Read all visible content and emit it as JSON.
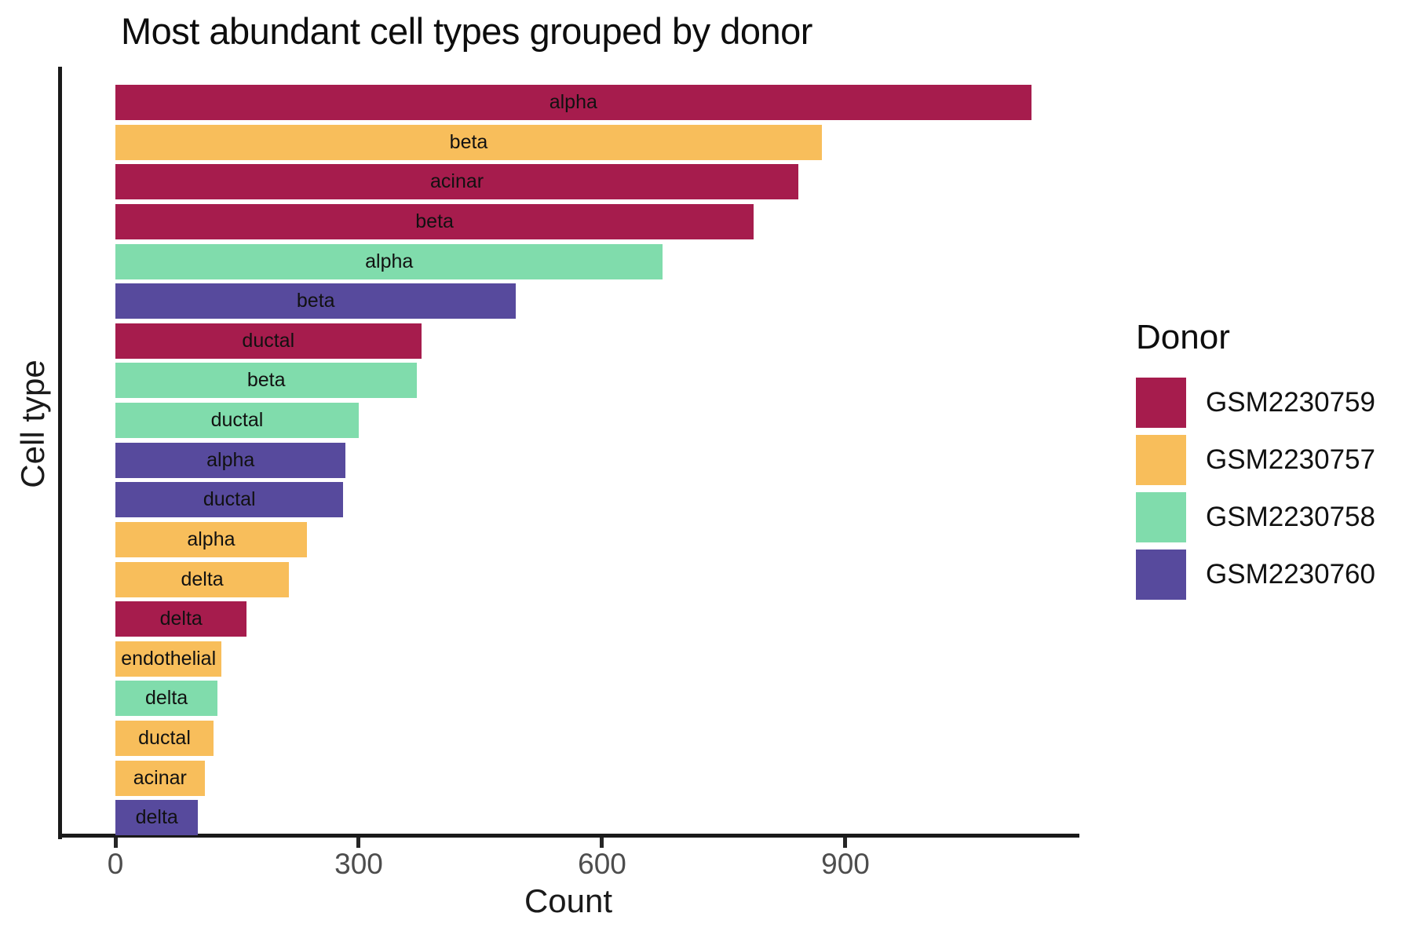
{
  "chart_data": {
    "type": "bar",
    "orientation": "horizontal",
    "title": "Most abundant cell types grouped by donor",
    "xlabel": "Count",
    "ylabel": "Cell type",
    "xlim": [
      0,
      1186
    ],
    "x_ticks": [
      0,
      300,
      600,
      900
    ],
    "grid": false,
    "legend": {
      "title": "Donor",
      "position": "right",
      "entries": [
        {
          "label": "GSM2230759",
          "color": "#A61C4D"
        },
        {
          "label": "GSM2230757",
          "color": "#F8BE5B"
        },
        {
          "label": "GSM2230758",
          "color": "#80DCAC"
        },
        {
          "label": "GSM2230760",
          "color": "#574A9D"
        }
      ]
    },
    "bars": [
      {
        "cell_type": "alpha",
        "donor": "GSM2230759",
        "value": 1129
      },
      {
        "cell_type": "beta",
        "donor": "GSM2230757",
        "value": 871
      },
      {
        "cell_type": "acinar",
        "donor": "GSM2230759",
        "value": 842
      },
      {
        "cell_type": "beta",
        "donor": "GSM2230759",
        "value": 787
      },
      {
        "cell_type": "alpha",
        "donor": "GSM2230758",
        "value": 675
      },
      {
        "cell_type": "beta",
        "donor": "GSM2230760",
        "value": 494
      },
      {
        "cell_type": "ductal",
        "donor": "GSM2230759",
        "value": 377
      },
      {
        "cell_type": "beta",
        "donor": "GSM2230758",
        "value": 372
      },
      {
        "cell_type": "ductal",
        "donor": "GSM2230758",
        "value": 300
      },
      {
        "cell_type": "alpha",
        "donor": "GSM2230760",
        "value": 284
      },
      {
        "cell_type": "ductal",
        "donor": "GSM2230760",
        "value": 281
      },
      {
        "cell_type": "alpha",
        "donor": "GSM2230757",
        "value": 236
      },
      {
        "cell_type": "delta",
        "donor": "GSM2230757",
        "value": 214
      },
      {
        "cell_type": "delta",
        "donor": "GSM2230759",
        "value": 162
      },
      {
        "cell_type": "endothelial",
        "donor": "GSM2230757",
        "value": 131
      },
      {
        "cell_type": "delta",
        "donor": "GSM2230758",
        "value": 126
      },
      {
        "cell_type": "ductal",
        "donor": "GSM2230757",
        "value": 121
      },
      {
        "cell_type": "acinar",
        "donor": "GSM2230757",
        "value": 110
      },
      {
        "cell_type": "delta",
        "donor": "GSM2230760",
        "value": 102
      }
    ]
  }
}
